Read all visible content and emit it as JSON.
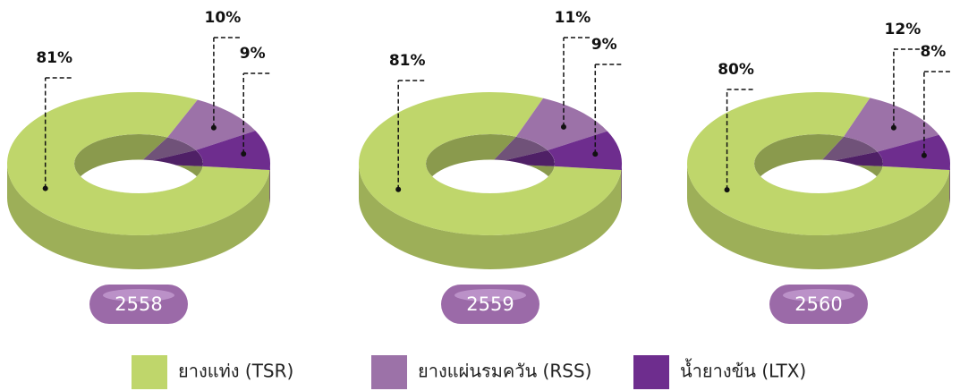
{
  "chart_data": [
    {
      "type": "donut3d",
      "title": "2558",
      "categories": [
        "ยางแท่ง (TSR)",
        "ยางแผ่นรมควัน (RSS)",
        "น้ำยางข้น (LTX)"
      ],
      "values": [
        81,
        10,
        9
      ],
      "value_labels": [
        "81%",
        "10%",
        "9%"
      ],
      "colors": [
        "#bfd66b",
        "#9c72a8",
        "#6e2d8e"
      ]
    },
    {
      "type": "donut3d",
      "title": "2559",
      "categories": [
        "ยางแท่ง (TSR)",
        "ยางแผ่นรมควัน (RSS)",
        "น้ำยางข้น (LTX)"
      ],
      "values": [
        81,
        11,
        9
      ],
      "value_labels": [
        "81%",
        "11%",
        "9%"
      ],
      "colors": [
        "#bfd66b",
        "#9c72a8",
        "#6e2d8e"
      ]
    },
    {
      "type": "donut3d",
      "title": "2560",
      "categories": [
        "ยางแท่ง (TSR)",
        "ยางแผ่นรมควัน (RSS)",
        "น้ำยางข้น (LTX)"
      ],
      "values": [
        80,
        12,
        8
      ],
      "value_labels": [
        "80%",
        "12%",
        "8%"
      ],
      "colors": [
        "#bfd66b",
        "#9c72a8",
        "#6e2d8e"
      ]
    }
  ]
}
